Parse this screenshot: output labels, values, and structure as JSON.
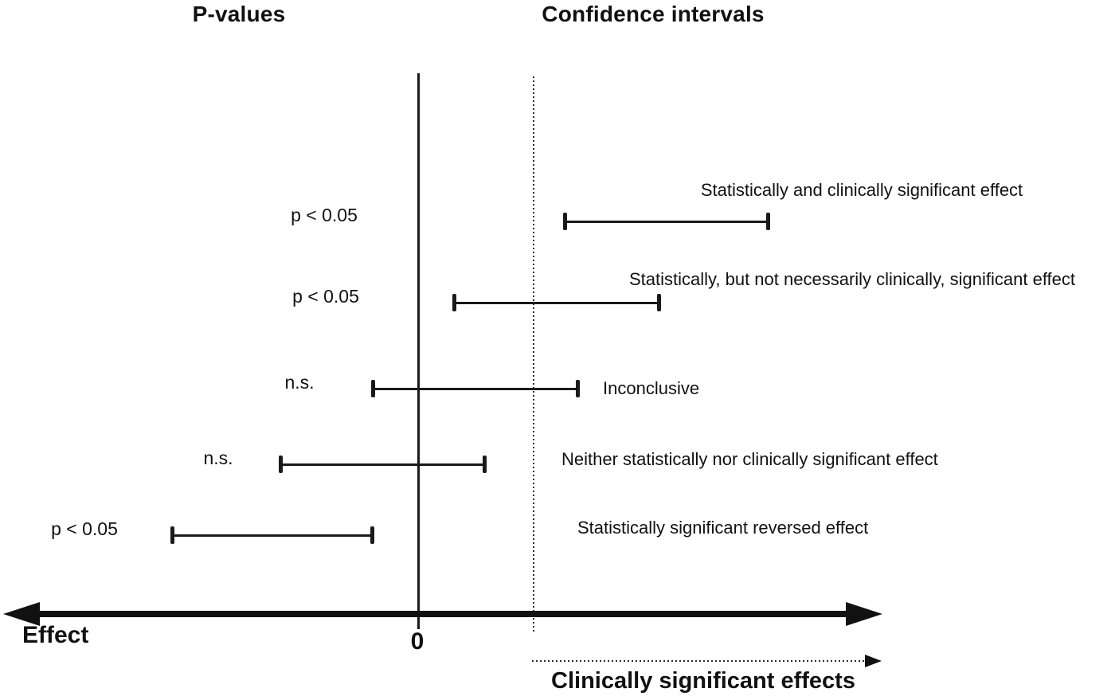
{
  "figure": {
    "headers": {
      "pvalues": "P-values",
      "confidence_intervals": "Confidence intervals"
    },
    "axis": {
      "effect_label": "Effect",
      "zero_label": "0",
      "clinical_label": "Clinically significant effects"
    },
    "colors": {
      "ink": "#111111",
      "background": "#ffffff"
    }
  },
  "chart_data": {
    "type": "interval_plot",
    "title": "",
    "xlabel": "Effect",
    "x_axis": {
      "zero_tick_label": "0",
      "clinical_threshold": 1.0,
      "range": [
        -3.6,
        4.0
      ],
      "units": "arbitrary effect units (clinical significance threshold = 1)"
    },
    "reference_lines": [
      {
        "name": "no-effect",
        "x": 0.0,
        "style": "solid"
      },
      {
        "name": "clinical-significance-threshold",
        "x": 1.0,
        "style": "dotted",
        "arrow_label": "Clinically significant effects"
      }
    ],
    "legend_position": "none",
    "grid": false,
    "rows": [
      {
        "p_label": "p < 0.05",
        "ci": [
          1.27,
          3.03
        ],
        "annotation": "Statistically and clinically significant effect"
      },
      {
        "p_label": "p < 0.05",
        "ci": [
          0.31,
          2.08
        ],
        "annotation": "Statistically, but not necessarily clinically, significant effect"
      },
      {
        "p_label": "n.s.",
        "ci": [
          -0.39,
          1.38
        ],
        "annotation": "Inconclusive"
      },
      {
        "p_label": "n.s.",
        "ci": [
          -1.19,
          0.57
        ],
        "annotation": "Neither statistically nor clinically significant effect"
      },
      {
        "p_label": "p < 0.05",
        "ci": [
          -2.13,
          -0.4
        ],
        "annotation": "Statistically significant reversed effect"
      }
    ]
  }
}
